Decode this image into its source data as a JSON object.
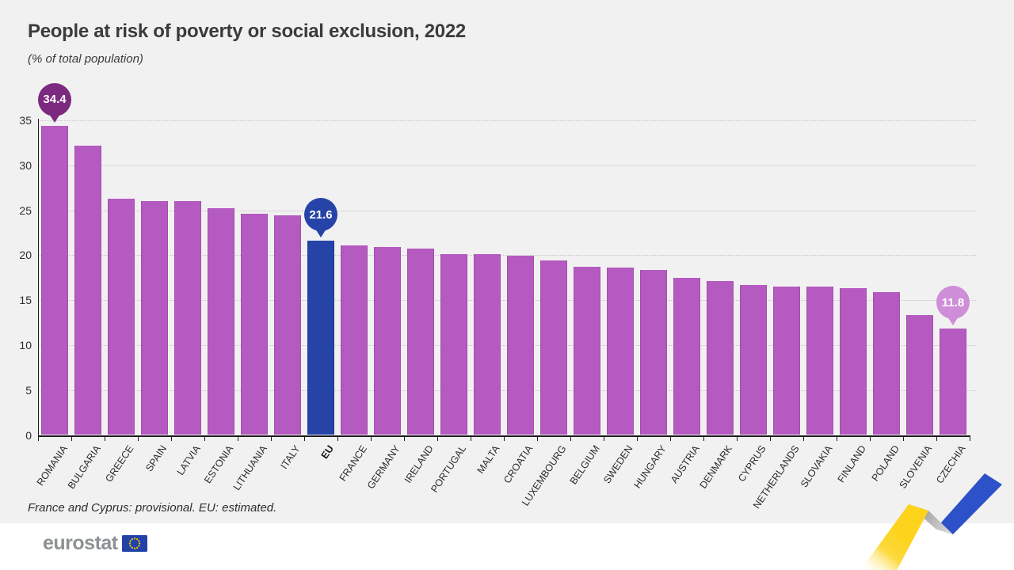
{
  "chart_data": {
    "type": "bar",
    "title": "People at risk of poverty or social exclusion, 2022",
    "subtitle": "(% of total population)",
    "xlabel": "",
    "ylabel": "% of total population",
    "ylim": [
      0,
      35
    ],
    "yticks": [
      0,
      5,
      10,
      15,
      20,
      25,
      30,
      35
    ],
    "grid": "dotted horizontal gridlines",
    "legend": "none",
    "categories": [
      "ROMANIA",
      "BULGARIA",
      "GREECE",
      "SPAIN",
      "LATVIA",
      "ESTONIA",
      "LITHUANIA",
      "ITALY",
      "EU",
      "FRANCE",
      "GERMANY",
      "IRELAND",
      "PORTUGAL",
      "MALTA",
      "CROATIA",
      "LUXEMBOURG",
      "BELGIUM",
      "SWEDEN",
      "HUNGARY",
      "AUSTRIA",
      "DENMARK",
      "CYPRUS",
      "NETHERLANDS",
      "SLOVAKIA",
      "FINLAND",
      "POLAND",
      "SLOVENIA",
      "CZECHIA"
    ],
    "values": [
      34.4,
      32.2,
      26.3,
      26.0,
      26.0,
      25.2,
      24.6,
      24.4,
      21.6,
      21.1,
      20.9,
      20.7,
      20.1,
      20.1,
      19.9,
      19.4,
      18.7,
      18.6,
      18.4,
      17.5,
      17.1,
      16.7,
      16.5,
      16.5,
      16.3,
      15.9,
      13.3,
      11.8
    ],
    "callouts": [
      {
        "category": "ROMANIA",
        "label": "34.4",
        "color": "#7b2a7f"
      },
      {
        "category": "EU",
        "label": "21.6",
        "color": "#2644a7"
      },
      {
        "category": "CZECHIA",
        "label": "11.8",
        "color": "#cf8ed8"
      }
    ],
    "footnote": "France and Cyprus: provisional. EU: estimated."
  },
  "footer": {
    "logo_text": "eurostat"
  },
  "colors": {
    "background": "#f2f1f1",
    "footer_band": "#ffffff",
    "bar_default": "#b55ac1",
    "bar_eu": "#2644a7",
    "axis": "#1a1a1a",
    "grid": "#c4c4c4",
    "text": "#2b2b2b",
    "title_text": "#3b3b3b",
    "logo_gray": "#8d9193",
    "flag_blue": "#2242a8",
    "star_yellow": "#ffcc00",
    "motif_yellow": "#fdd31b",
    "motif_gray_dark": "#8f8f8f",
    "motif_gray_light": "#dadada",
    "motif_blue": "#2c51c9"
  }
}
